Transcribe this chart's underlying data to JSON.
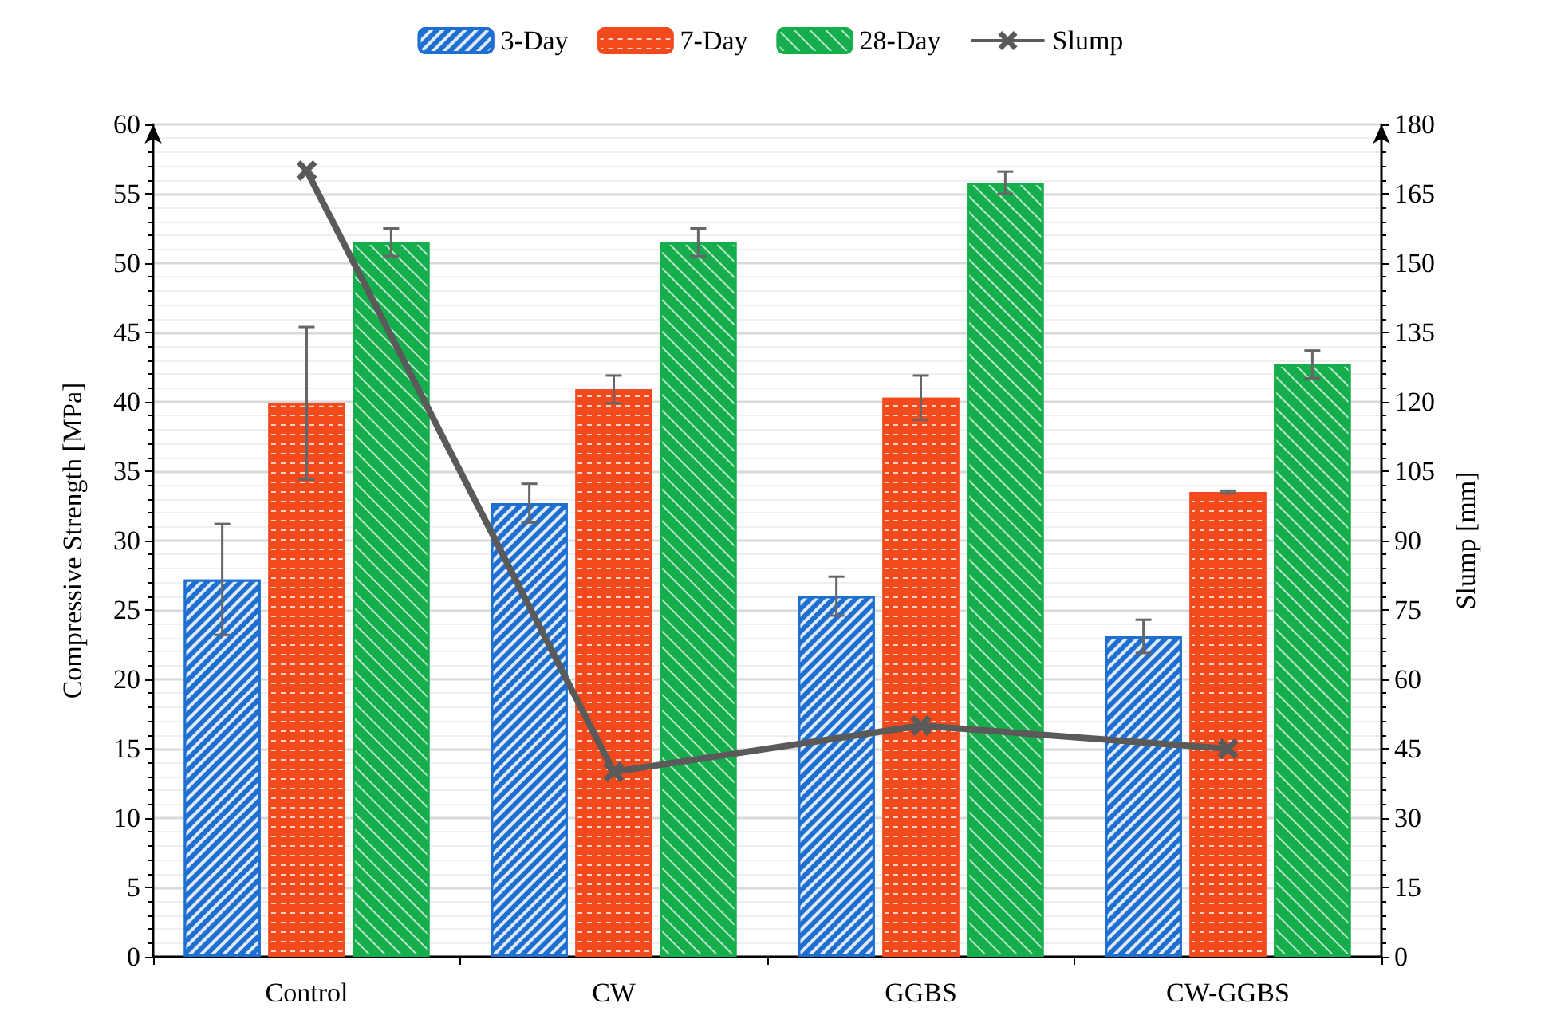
{
  "chart_data": {
    "type": "bar",
    "categories": [
      "Control",
      "CW",
      "GGBS",
      "CW-GGBS"
    ],
    "ylabel": "Compressive Strength [MPa]",
    "y2label": "Slump [mm]",
    "ylim": [
      0,
      60
    ],
    "yticks": [
      0,
      5,
      10,
      15,
      20,
      25,
      30,
      35,
      40,
      45,
      50,
      55,
      60
    ],
    "y2lim": [
      0,
      180
    ],
    "y2ticks": [
      0,
      15,
      30,
      45,
      60,
      75,
      90,
      105,
      120,
      135,
      150,
      165,
      180
    ],
    "grid": "y",
    "legend": "top",
    "series": [
      {
        "name": "3-Day",
        "color": "#1f6fd1",
        "values": [
          27.2,
          32.7,
          26.0,
          23.1
        ],
        "errors": [
          4.0,
          1.4,
          1.4,
          1.2
        ]
      },
      {
        "name": "7-Day",
        "color": "#f24a1d",
        "values": [
          39.9,
          40.9,
          40.3,
          33.5
        ],
        "errors": [
          5.5,
          1.0,
          1.6,
          0.1
        ]
      },
      {
        "name": "28-Day",
        "color": "#16ad4c",
        "values": [
          51.5,
          51.5,
          55.8,
          42.7
        ],
        "errors": [
          1.0,
          1.0,
          0.8,
          1.0
        ]
      },
      {
        "name": "Slump",
        "type": "line",
        "axis": "y2",
        "color": "#5a5a5a",
        "marker": "cross",
        "line_style": "solid",
        "values": [
          170,
          40,
          50,
          45
        ]
      }
    ]
  }
}
